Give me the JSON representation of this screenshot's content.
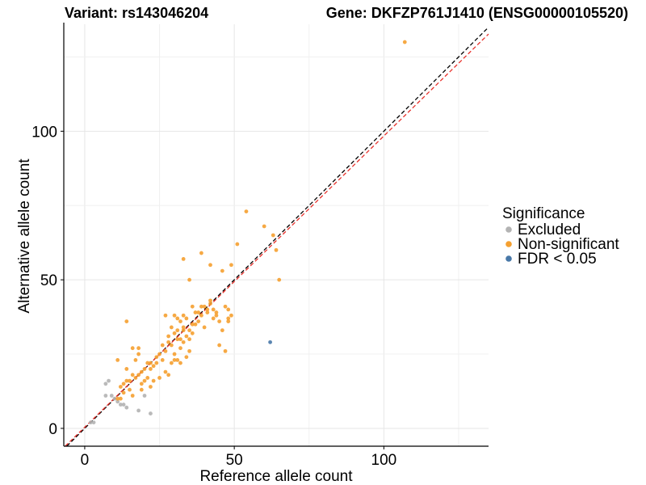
{
  "chart_data": {
    "type": "scatter",
    "title_left": "Variant: rs143046204",
    "title_right": "Gene: DKFZP761J1410 (ENSG00000105520)",
    "xlabel": "Reference allele count",
    "ylabel": "Alternative allele count",
    "xlim": [
      -7,
      135
    ],
    "ylim": [
      -6,
      136
    ],
    "x_ticks": [
      0,
      50,
      100
    ],
    "y_ticks": [
      0,
      50,
      100
    ],
    "grid": true,
    "legend": {
      "title": "Significance",
      "position": "right",
      "entries": [
        {
          "label": "Excluded",
          "color": "#b3b3b3"
        },
        {
          "label": "Non-significant",
          "color": "#f5a030"
        },
        {
          "label": "FDR < 0.05",
          "color": "#4878a8"
        }
      ]
    },
    "reference_lines": [
      {
        "name": "identity",
        "slope": 1,
        "intercept": 0,
        "color": "#000000",
        "style": "dashed"
      },
      {
        "name": "fit",
        "slope": 0.98,
        "intercept": 0.4,
        "color": "#e8302a",
        "style": "dashed"
      }
    ],
    "series": [
      {
        "name": "Excluded",
        "color": "#b3b3b3",
        "points": [
          [
            2,
            2
          ],
          [
            3,
            2
          ],
          [
            7,
            15
          ],
          [
            8,
            16
          ],
          [
            7,
            11
          ],
          [
            9,
            11
          ],
          [
            10,
            10
          ],
          [
            11,
            9
          ],
          [
            12,
            8
          ],
          [
            13,
            8
          ],
          [
            14,
            7
          ],
          [
            18,
            6
          ],
          [
            22,
            5
          ],
          [
            20,
            11
          ]
        ]
      },
      {
        "name": "Non-significant",
        "color": "#f5a030",
        "points": [
          [
            107,
            130
          ],
          [
            54,
            73
          ],
          [
            60,
            68
          ],
          [
            51,
            62
          ],
          [
            63,
            65
          ],
          [
            64,
            60
          ],
          [
            65,
            50
          ],
          [
            39,
            59
          ],
          [
            33,
            57
          ],
          [
            42,
            55
          ],
          [
            49,
            55
          ],
          [
            35,
            50
          ],
          [
            46,
            53
          ],
          [
            40,
            41
          ],
          [
            41,
            40
          ],
          [
            42,
            42
          ],
          [
            43,
            40
          ],
          [
            44,
            39
          ],
          [
            45,
            36
          ],
          [
            47,
            41
          ],
          [
            48,
            37
          ],
          [
            49,
            38
          ],
          [
            48,
            40
          ],
          [
            39,
            38
          ],
          [
            38,
            36
          ],
          [
            36,
            35
          ],
          [
            37,
            39
          ],
          [
            34,
            37
          ],
          [
            33,
            38
          ],
          [
            32,
            36
          ],
          [
            30,
            38
          ],
          [
            27,
            38
          ],
          [
            29,
            34
          ],
          [
            31,
            33
          ],
          [
            33,
            33
          ],
          [
            35,
            33
          ],
          [
            36,
            32
          ],
          [
            34,
            31
          ],
          [
            32,
            30
          ],
          [
            30,
            32
          ],
          [
            28,
            31
          ],
          [
            26,
            28
          ],
          [
            27,
            26
          ],
          [
            25,
            25
          ],
          [
            30,
            25
          ],
          [
            32,
            27
          ],
          [
            33,
            29
          ],
          [
            35,
            30
          ],
          [
            31,
            30
          ],
          [
            28,
            29
          ],
          [
            46,
            33
          ],
          [
            45,
            28
          ],
          [
            47,
            26
          ],
          [
            48,
            36
          ],
          [
            44,
            38
          ],
          [
            42,
            43
          ],
          [
            36,
            41
          ],
          [
            38,
            39
          ],
          [
            24,
            24
          ],
          [
            23,
            21
          ],
          [
            22,
            22
          ],
          [
            21,
            22
          ],
          [
            20,
            20
          ],
          [
            19,
            19
          ],
          [
            18,
            18
          ],
          [
            17,
            17
          ],
          [
            16,
            18
          ],
          [
            15,
            16
          ],
          [
            14,
            16
          ],
          [
            13,
            15
          ],
          [
            12,
            14
          ],
          [
            16,
            27
          ],
          [
            18,
            27
          ],
          [
            14,
            36
          ],
          [
            17,
            23
          ],
          [
            11,
            23
          ],
          [
            19,
            15
          ],
          [
            21,
            17
          ],
          [
            23,
            16
          ],
          [
            25,
            17
          ],
          [
            27,
            19
          ],
          [
            29,
            22
          ],
          [
            30,
            23
          ],
          [
            31,
            23
          ],
          [
            29,
            28
          ],
          [
            26,
            23
          ],
          [
            22,
            20
          ],
          [
            20,
            16
          ],
          [
            15,
            13
          ],
          [
            13,
            12
          ],
          [
            12,
            10
          ],
          [
            11,
            10
          ],
          [
            14,
            20
          ],
          [
            18,
            25
          ],
          [
            24,
            22
          ],
          [
            19,
            13
          ],
          [
            16,
            11
          ],
          [
            22,
            14
          ],
          [
            28,
            18
          ],
          [
            32,
            22
          ],
          [
            34,
            24
          ],
          [
            35,
            26
          ],
          [
            33,
            34
          ],
          [
            31,
            37
          ],
          [
            40,
            34
          ],
          [
            37,
            35
          ],
          [
            41,
            39
          ],
          [
            43,
            37
          ],
          [
            39,
            41
          ]
        ]
      },
      {
        "name": "FDR < 0.05",
        "color": "#4878a8",
        "points": [
          [
            62,
            29
          ]
        ]
      }
    ]
  }
}
